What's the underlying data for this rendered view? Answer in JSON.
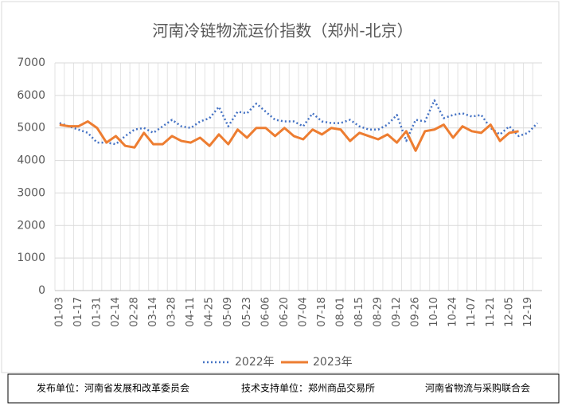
{
  "chart_data": {
    "type": "line",
    "title": "河南冷链物流运价指数（郑州-北京）",
    "categories": [
      "01-03",
      null,
      "01-17",
      null,
      "01-31",
      null,
      "02-14",
      null,
      "02-28",
      null,
      "03-14",
      null,
      "03-28",
      null,
      "04-11",
      null,
      "04-25",
      null,
      "05-09",
      null,
      "05-23",
      null,
      "06-06",
      null,
      "06-20",
      null,
      "07-04",
      null,
      "07-18",
      null,
      "08-01",
      null,
      "08-15",
      null,
      "08-29",
      null,
      "09-12",
      null,
      "09-26",
      null,
      "10-10",
      null,
      "10-24",
      null,
      "11-07",
      null,
      "11-21",
      null,
      "12-05",
      null,
      "12-19",
      null
    ],
    "series": [
      {
        "name": "2022年",
        "color": "#4472c4",
        "dash": true,
        "values": [
          5150,
          5050,
          4950,
          4850,
          4550,
          4550,
          4500,
          4750,
          4950,
          5000,
          4850,
          5050,
          5250,
          5050,
          5000,
          5200,
          5300,
          5650,
          5050,
          5500,
          5450,
          5750,
          5500,
          5250,
          5200,
          5200,
          5050,
          5450,
          5200,
          5150,
          5150,
          5250,
          5050,
          4950,
          4950,
          5100,
          5400,
          4600,
          5250,
          5200,
          5850,
          5300,
          5400,
          5450,
          5350,
          5400,
          5000,
          4800,
          5050,
          4750,
          4850,
          5150
        ]
      },
      {
        "name": "2023年",
        "color": "#ed7d31",
        "dash": false,
        "values": [
          5100,
          5050,
          5050,
          5200,
          5000,
          4550,
          4750,
          4450,
          4400,
          4850,
          4500,
          4500,
          4750,
          4600,
          4550,
          4700,
          4450,
          4800,
          4500,
          4950,
          4700,
          5000,
          5000,
          4750,
          5000,
          4750,
          4650,
          4950,
          4800,
          5000,
          4950,
          4600,
          4850,
          4750,
          4650,
          4800,
          4550,
          4900,
          4300,
          4900,
          4950,
          5100,
          4700,
          5050,
          4900,
          4850,
          5100,
          4600,
          4850,
          4900,
          null,
          null
        ]
      }
    ],
    "ylim": [
      0,
      7000
    ],
    "yticks": [
      0,
      1000,
      2000,
      3000,
      4000,
      5000,
      6000,
      7000
    ],
    "grid": true,
    "legend": "bottom"
  },
  "footer": [
    "发布单位：河南省发展和改革委员会",
    "技术支持单位：郑州商品交易所",
    "河南省物流与采购联合会"
  ]
}
